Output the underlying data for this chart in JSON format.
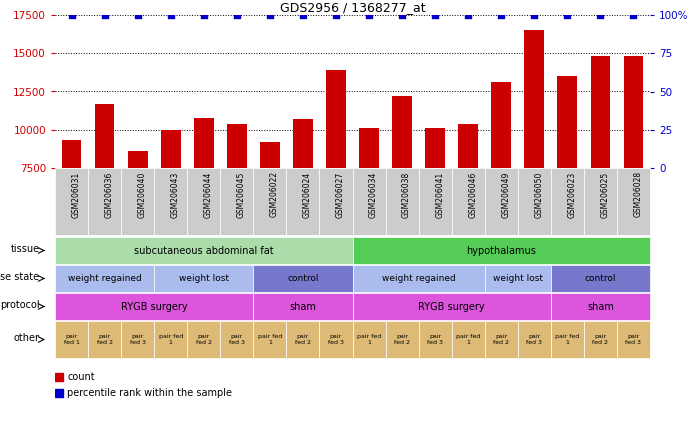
{
  "title": "GDS2956 / 1368277_at",
  "samples": [
    "GSM206031",
    "GSM206036",
    "GSM206040",
    "GSM206043",
    "GSM206044",
    "GSM206045",
    "GSM206022",
    "GSM206024",
    "GSM206027",
    "GSM206034",
    "GSM206038",
    "GSM206041",
    "GSM206046",
    "GSM206049",
    "GSM206050",
    "GSM206023",
    "GSM206025",
    "GSM206028"
  ],
  "counts": [
    9300,
    11700,
    8600,
    10000,
    10800,
    10400,
    9200,
    10700,
    13900,
    10100,
    12200,
    10100,
    10400,
    13100,
    16500,
    13500,
    14800,
    14800
  ],
  "percentile": [
    100,
    100,
    100,
    100,
    100,
    100,
    100,
    100,
    100,
    100,
    100,
    100,
    100,
    100,
    100,
    100,
    100,
    100
  ],
  "ylim_left": [
    7500,
    17500
  ],
  "ylim_right": [
    0,
    100
  ],
  "yticks_left": [
    7500,
    10000,
    12500,
    15000,
    17500
  ],
  "yticks_right": [
    0,
    25,
    50,
    75,
    100
  ],
  "bar_color": "#cc0000",
  "percentile_color": "#0000cc",
  "xtick_bg": "#cccccc",
  "tissue_groups": [
    {
      "label": "subcutaneous abdominal fat",
      "start": 0,
      "end": 8,
      "color": "#aaddaa"
    },
    {
      "label": "hypothalamus",
      "start": 9,
      "end": 17,
      "color": "#55cc55"
    }
  ],
  "disease_groups": [
    {
      "label": "weight regained",
      "start": 0,
      "end": 2,
      "color": "#aabbee"
    },
    {
      "label": "weight lost",
      "start": 3,
      "end": 5,
      "color": "#aabbee"
    },
    {
      "label": "control",
      "start": 6,
      "end": 8,
      "color": "#7777cc"
    },
    {
      "label": "weight regained",
      "start": 9,
      "end": 12,
      "color": "#aabbee"
    },
    {
      "label": "weight lost",
      "start": 13,
      "end": 14,
      "color": "#aabbee"
    },
    {
      "label": "control",
      "start": 15,
      "end": 17,
      "color": "#7777cc"
    }
  ],
  "protocol_groups": [
    {
      "label": "RYGB surgery",
      "start": 0,
      "end": 5,
      "color": "#dd55dd"
    },
    {
      "label": "sham",
      "start": 6,
      "end": 8,
      "color": "#dd55dd"
    },
    {
      "label": "RYGB surgery",
      "start": 9,
      "end": 14,
      "color": "#dd55dd"
    },
    {
      "label": "sham",
      "start": 15,
      "end": 17,
      "color": "#dd55dd"
    }
  ],
  "other_labels": [
    "pair\nfed 1",
    "pair\nfed 2",
    "pair\nfed 3",
    "pair fed\n1",
    "pair\nfed 2",
    "pair\nfed 3",
    "pair fed\n1",
    "pair\nfed 2",
    "pair\nfed 3",
    "pair fed\n1",
    "pair\nfed 2",
    "pair\nfed 3",
    "pair fed\n1",
    "pair\nfed 2",
    "pair\nfed 3",
    "pair fed\n1",
    "pair\nfed 2",
    "pair\nfed 3"
  ],
  "other_color": "#ddbb77",
  "row_labels": [
    "tissue",
    "disease state",
    "protocol",
    "other"
  ],
  "background_color": "#ffffff",
  "axis_label_color_left": "#cc0000",
  "axis_label_color_right": "#0000cc"
}
